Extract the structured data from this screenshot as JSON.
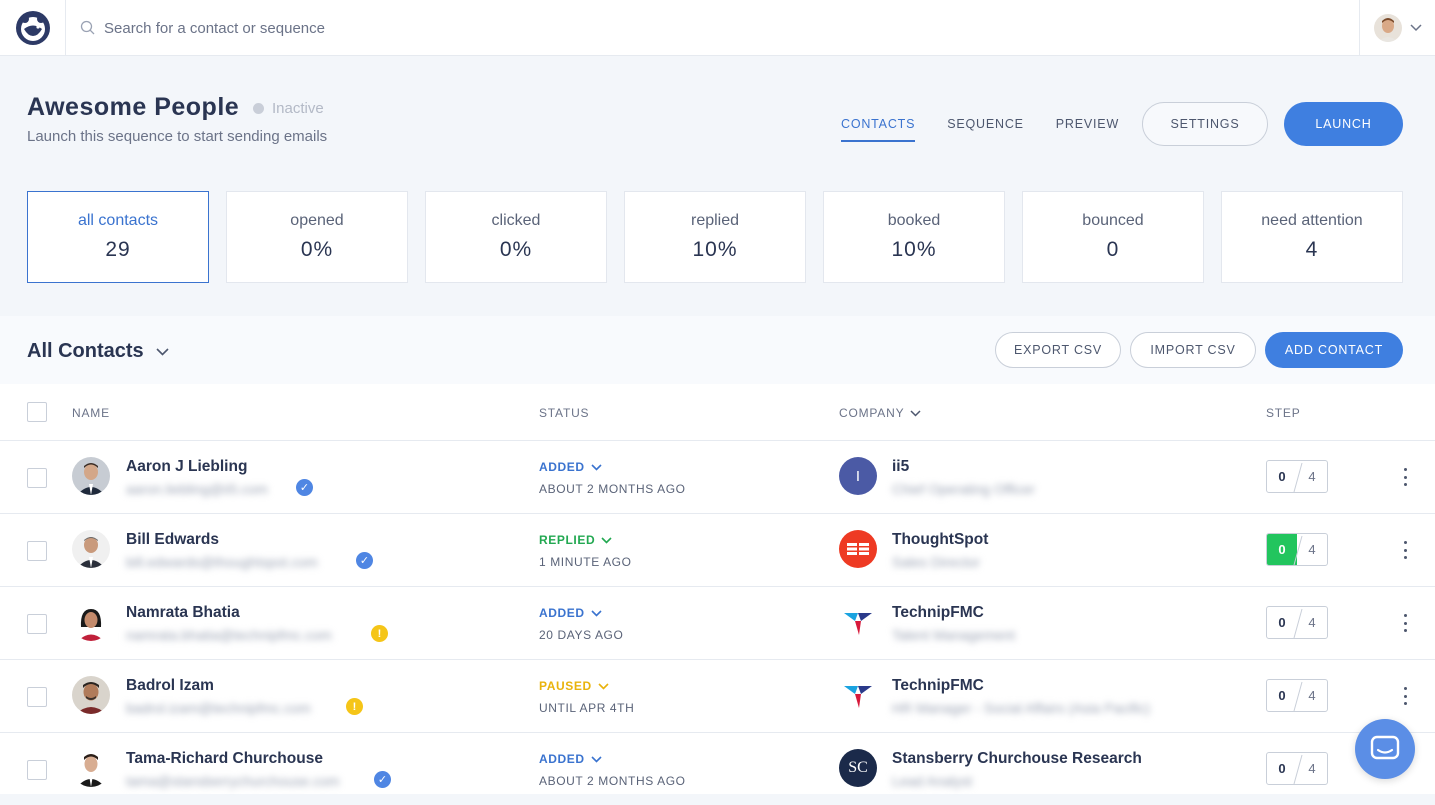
{
  "search": {
    "placeholder": "Search for a contact or sequence"
  },
  "sequence": {
    "title": "Awesome People",
    "status": "Inactive",
    "subtitle": "Launch this sequence to start sending emails"
  },
  "tabs": [
    {
      "label": "CONTACTS",
      "active": true
    },
    {
      "label": "SEQUENCE",
      "active": false
    },
    {
      "label": "PREVIEW",
      "active": false
    }
  ],
  "actions": {
    "settings": "SETTINGS",
    "launch": "LAUNCH"
  },
  "stats": [
    {
      "label": "all contacts",
      "value": "29"
    },
    {
      "label": "opened",
      "value": "0%"
    },
    {
      "label": "clicked",
      "value": "0%"
    },
    {
      "label": "replied",
      "value": "10%"
    },
    {
      "label": "booked",
      "value": "10%"
    },
    {
      "label": "bounced",
      "value": "0"
    },
    {
      "label": "need attention",
      "value": "4"
    }
  ],
  "list": {
    "title": "All Contacts",
    "export": "EXPORT CSV",
    "import": "IMPORT CSV",
    "add": "ADD CONTACT"
  },
  "columns": {
    "name": "NAME",
    "status": "STATUS",
    "company": "COMPANY",
    "step": "STEP"
  },
  "colors": {
    "added": "#3a73cf",
    "replied": "#22a851",
    "paused": "#e9b30c",
    "primary": "#3f7fe0"
  },
  "contacts": [
    {
      "name": "Aaron J Liebling",
      "email": "aaron.liebling@ii5.com",
      "badge": "verified-icon",
      "status": "ADDED",
      "status_sub": "ABOUT 2 MONTHS AGO",
      "company": "ii5",
      "company_title": "Chief Operating Officer",
      "logo_letter": "I",
      "step": "0",
      "step_total": "4"
    },
    {
      "name": "Bill Edwards",
      "email": "bill.edwards@thoughtspot.com",
      "badge": "verified-icon",
      "status": "REPLIED",
      "status_sub": "1 MINUTE AGO",
      "company": "ThoughtSpot",
      "company_title": "Sales Director",
      "step": "0",
      "step_total": "4"
    },
    {
      "name": "Namrata Bhatia",
      "email": "namrata.bhatia@technipfmc.com",
      "badge": "warning-icon",
      "status": "ADDED",
      "status_sub": "20 DAYS AGO",
      "company": "TechnipFMC",
      "company_title": "Talent Management",
      "step": "0",
      "step_total": "4"
    },
    {
      "name": "Badrol Izam",
      "email": "badrol.izam@technipfmc.com",
      "badge": "warning-icon",
      "status": "PAUSED",
      "status_sub": "UNTIL APR 4TH",
      "company": "TechnipFMC",
      "company_title": "HR Manager - Social Affairs (Asia Pacific)",
      "step": "0",
      "step_total": "4"
    },
    {
      "name": "Tama-Richard Churchouse",
      "email": "tama@stansberrychurchouse.com",
      "badge": "verified-icon",
      "status": "ADDED",
      "status_sub": "ABOUT 2 MONTHS AGO",
      "company": "Stansberry Churchouse Research",
      "company_title": "Lead Analyst",
      "logo_letter": "SC",
      "step": "0",
      "step_total": "4"
    }
  ]
}
